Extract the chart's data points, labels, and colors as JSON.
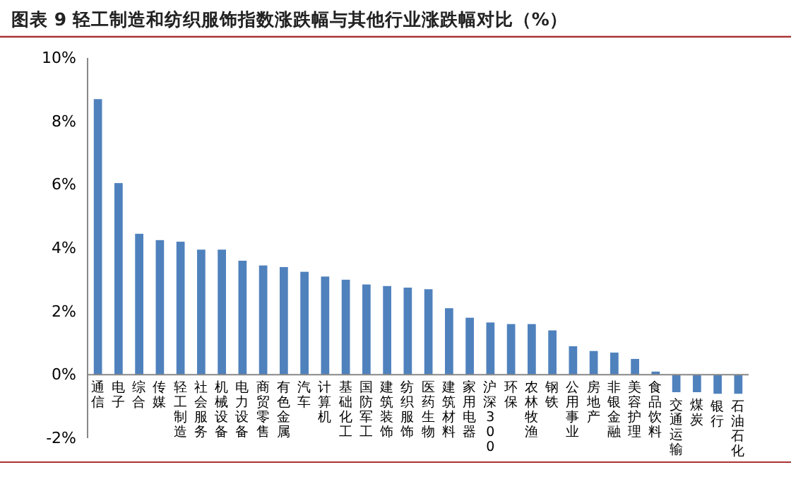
{
  "chart_data": {
    "type": "bar",
    "title": "图表 9 轻工制造和纺织服饰指数涨跌幅与其他行业涨跌幅对比（%）",
    "categories": [
      "通信",
      "电子",
      "综合",
      "传媒",
      "轻工制造",
      "社会服务",
      "机械设备",
      "电力设备",
      "商贸零售",
      "有色金属",
      "汽车",
      "计算机",
      "基础化工",
      "国防军工",
      "建筑装饰",
      "纺织服饰",
      "医药生物",
      "建筑材料",
      "家用电器",
      "沪深300",
      "环保",
      "农林牧渔",
      "钢铁",
      "公用事业",
      "房地产",
      "非银金融",
      "美容护理",
      "食品饮料",
      "交通运输",
      "煤炭",
      "银行",
      "石油石化"
    ],
    "values": [
      8.7,
      6.05,
      4.45,
      4.25,
      4.2,
      3.95,
      3.95,
      3.6,
      3.45,
      3.4,
      3.25,
      3.1,
      3.0,
      2.85,
      2.8,
      2.75,
      2.7,
      2.1,
      1.8,
      1.65,
      1.6,
      1.6,
      1.4,
      0.9,
      0.75,
      0.7,
      0.5,
      0.1,
      -0.55,
      -0.55,
      -0.6,
      -0.6
    ],
    "color": "#4f81bd",
    "ylim": [
      -2,
      10
    ],
    "yticks": [
      {
        "value": -2,
        "label": "-2%"
      },
      {
        "value": 0,
        "label": "0%"
      },
      {
        "value": 2,
        "label": "2%"
      },
      {
        "value": 4,
        "label": "4%"
      },
      {
        "value": 6,
        "label": "6%"
      },
      {
        "value": 8,
        "label": "8%"
      },
      {
        "value": 10,
        "label": "10%"
      }
    ],
    "grid": false
  }
}
